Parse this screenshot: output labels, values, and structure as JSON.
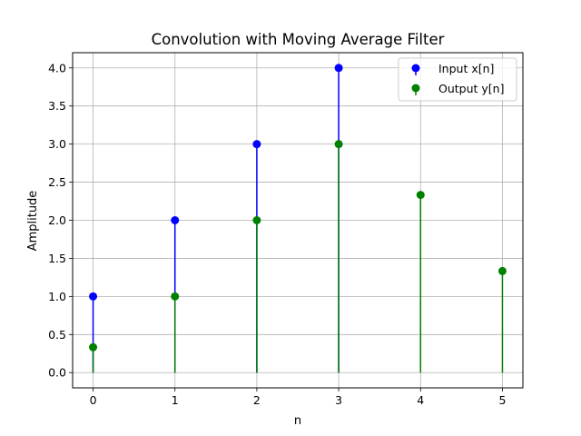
{
  "chart_data": {
    "type": "stem",
    "title": "Convolution with Moving Average Filter",
    "xlabel": "n",
    "ylabel": "Amplitude",
    "xlim": [
      -0.25,
      5.25
    ],
    "ylim": [
      -0.2,
      4.2
    ],
    "xticks": [
      0,
      1,
      2,
      3,
      4,
      5
    ],
    "yticks": [
      0.0,
      0.5,
      1.0,
      1.5,
      2.0,
      2.5,
      3.0,
      3.5,
      4.0
    ],
    "ytick_labels": [
      "0.0",
      "0.5",
      "1.0",
      "1.5",
      "2.0",
      "2.5",
      "3.0",
      "3.5",
      "4.0"
    ],
    "grid": true,
    "legend_position": "top-right",
    "series": [
      {
        "name": "Input x[n]",
        "color": "#0000ff",
        "x": [
          0,
          1,
          2,
          3
        ],
        "values": [
          1,
          2,
          3,
          4
        ]
      },
      {
        "name": "Output y[n]",
        "color": "#008000",
        "x": [
          0,
          1,
          2,
          3,
          4,
          5
        ],
        "values": [
          0.333,
          1.0,
          2.0,
          3.0,
          2.333,
          1.333
        ]
      }
    ]
  }
}
